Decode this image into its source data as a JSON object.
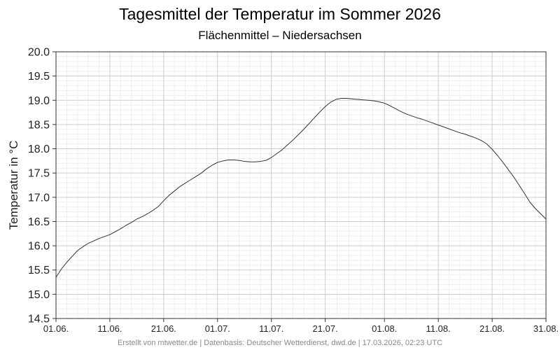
{
  "chart_data": {
    "type": "line",
    "title": "Tagesmittel der Temperatur im Sommer 2026",
    "subtitle": "Flächenmittel – Niedersachsen",
    "xlabel": "",
    "ylabel": "Temperatur in °C",
    "ylim": [
      14.5,
      20.0
    ],
    "yticks": [
      "14.5",
      "15.0",
      "15.5",
      "16.0",
      "16.5",
      "17.0",
      "17.5",
      "18.0",
      "18.5",
      "19.0",
      "19.5",
      "20.0"
    ],
    "xrange_days": [
      0,
      91
    ],
    "xticks": [
      {
        "label": "01.06.",
        "day": 0
      },
      {
        "label": "11.06.",
        "day": 10
      },
      {
        "label": "21.06.",
        "day": 20
      },
      {
        "label": "01.07.",
        "day": 30
      },
      {
        "label": "11.07.",
        "day": 40
      },
      {
        "label": "21.07.",
        "day": 50
      },
      {
        "label": "01.08.",
        "day": 61
      },
      {
        "label": "11.08.",
        "day": 71
      },
      {
        "label": "21.08.",
        "day": 81
      },
      {
        "label": "31.08.",
        "day": 91
      }
    ],
    "grid": true,
    "line_color": "#333333",
    "series": [
      {
        "x": [
          "01.06.",
          "02.06.",
          "03.06.",
          "04.06.",
          "05.06.",
          "06.06.",
          "07.06.",
          "08.06.",
          "09.06.",
          "10.06.",
          "11.06.",
          "12.06.",
          "13.06.",
          "14.06.",
          "15.06.",
          "16.06.",
          "17.06.",
          "18.06.",
          "19.06.",
          "20.06.",
          "21.06.",
          "22.06.",
          "23.06.",
          "24.06.",
          "25.06.",
          "26.06.",
          "27.06.",
          "28.06.",
          "29.06.",
          "30.06.",
          "01.07.",
          "02.07.",
          "03.07.",
          "04.07.",
          "05.07.",
          "06.07.",
          "07.07.",
          "08.07.",
          "09.07.",
          "10.07.",
          "11.07.",
          "12.07.",
          "13.07.",
          "14.07.",
          "15.07.",
          "16.07.",
          "17.07.",
          "18.07.",
          "19.07.",
          "20.07.",
          "21.07.",
          "22.07.",
          "23.07.",
          "24.07.",
          "25.07.",
          "26.07.",
          "27.07.",
          "28.07.",
          "29.07.",
          "30.07.",
          "31.07.",
          "01.08.",
          "02.08.",
          "03.08.",
          "04.08.",
          "05.08.",
          "06.08.",
          "07.08.",
          "08.08.",
          "09.08.",
          "10.08.",
          "11.08.",
          "12.08.",
          "13.08.",
          "14.08.",
          "15.08.",
          "16.08.",
          "17.08.",
          "18.08.",
          "19.08.",
          "20.08.",
          "21.08.",
          "22.08.",
          "23.08.",
          "24.08.",
          "25.08.",
          "26.08.",
          "27.08.",
          "28.08.",
          "29.08.",
          "30.08.",
          "31.08."
        ],
        "values": [
          15.35,
          15.52,
          15.66,
          15.78,
          15.9,
          15.98,
          16.05,
          16.1,
          16.15,
          16.19,
          16.23,
          16.29,
          16.35,
          16.42,
          16.48,
          16.55,
          16.6,
          16.66,
          16.73,
          16.81,
          16.93,
          17.04,
          17.13,
          17.22,
          17.29,
          17.36,
          17.43,
          17.5,
          17.59,
          17.66,
          17.72,
          17.75,
          17.77,
          17.77,
          17.76,
          17.74,
          17.73,
          17.73,
          17.74,
          17.76,
          17.82,
          17.9,
          17.98,
          18.08,
          18.18,
          18.29,
          18.4,
          18.52,
          18.64,
          18.76,
          18.87,
          18.96,
          19.02,
          19.04,
          19.04,
          19.03,
          19.02,
          19.01,
          19.0,
          18.99,
          18.97,
          18.94,
          18.89,
          18.83,
          18.77,
          18.72,
          18.68,
          18.64,
          18.61,
          18.57,
          18.53,
          18.49,
          18.45,
          18.41,
          18.37,
          18.33,
          18.3,
          18.26,
          18.22,
          18.17,
          18.1,
          17.99,
          17.86,
          17.72,
          17.57,
          17.42,
          17.25,
          17.08,
          16.9,
          16.77,
          16.66,
          16.55
        ]
      }
    ]
  },
  "footer": "Erstellt von mtwetter.de | Datenbasis: Deutscher Wetterdienst, dwd.de | 17.03.2026, 02:23 UTC"
}
